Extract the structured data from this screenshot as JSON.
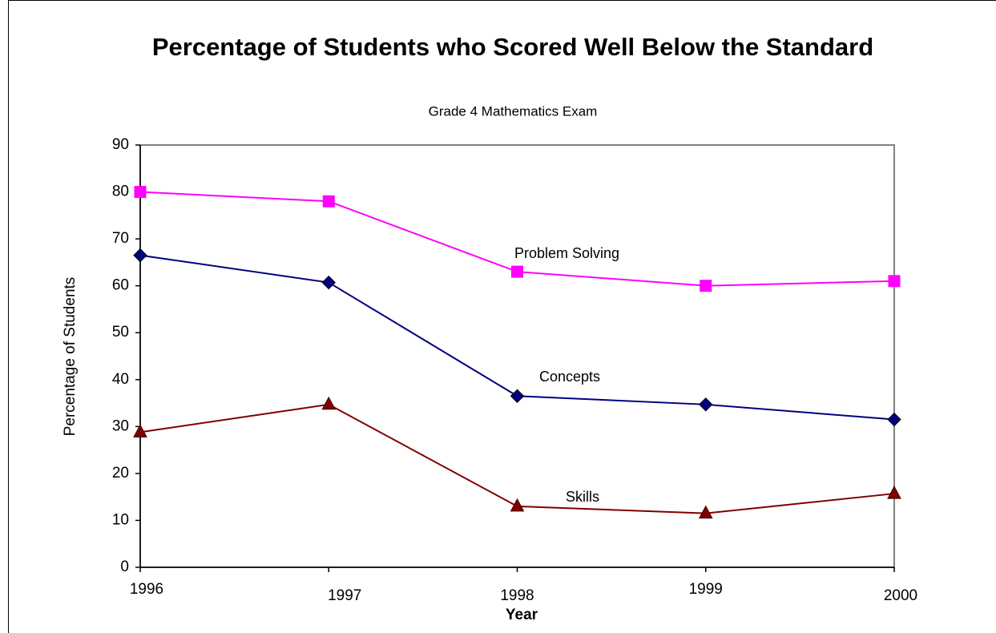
{
  "chart_data": {
    "type": "line",
    "title": "Percentage of Students who Scored Well Below the Standard",
    "subtitle": "Grade 4 Mathematics Exam",
    "x_label": "Year",
    "y_label": "Percentage of Students",
    "x": [
      1996,
      1997,
      1998,
      1999,
      2000
    ],
    "xlim": [
      1996,
      2000
    ],
    "xticks": [
      1996,
      1997,
      1998,
      1999,
      2000
    ],
    "ylim": [
      0,
      90
    ],
    "yticks": [
      0,
      10,
      20,
      30,
      40,
      50,
      60,
      70,
      80,
      90
    ],
    "grid": false,
    "series": [
      {
        "name": "Problem Solving",
        "color": "#ff00ff",
        "marker": "square",
        "values": [
          80,
          78,
          63,
          60,
          61
        ]
      },
      {
        "name": "Concepts",
        "color": "#000080",
        "marker": "diamond",
        "values": [
          66.5,
          60.7,
          36.5,
          34.7,
          31.5
        ]
      },
      {
        "name": "Skills",
        "color": "#800000",
        "marker": "triangle",
        "values": [
          28.8,
          34.7,
          13,
          11.5,
          15.7
        ]
      }
    ]
  }
}
